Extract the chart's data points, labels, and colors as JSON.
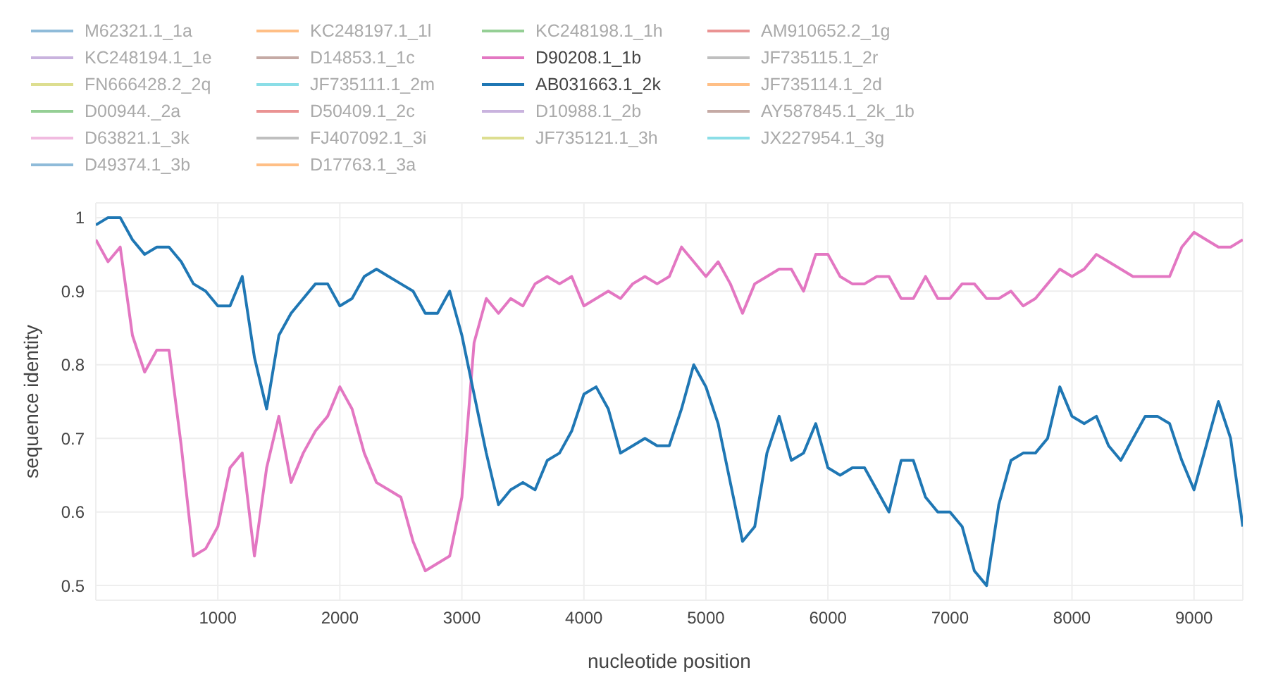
{
  "chart_data": {
    "type": "line",
    "xlabel": "nucleotide position",
    "ylabel": "sequence identity",
    "x": [
      0,
      100,
      200,
      300,
      400,
      500,
      600,
      700,
      800,
      900,
      1000,
      1100,
      1200,
      1300,
      1400,
      1500,
      1600,
      1700,
      1800,
      1900,
      2000,
      2100,
      2200,
      2300,
      2400,
      2500,
      2600,
      2700,
      2800,
      2900,
      3000,
      3100,
      3200,
      3300,
      3400,
      3500,
      3600,
      3700,
      3800,
      3900,
      4000,
      4100,
      4200,
      4300,
      4400,
      4500,
      4600,
      4700,
      4800,
      4900,
      5000,
      5100,
      5200,
      5300,
      5400,
      5500,
      5600,
      5700,
      5800,
      5900,
      6000,
      6100,
      6200,
      6300,
      6400,
      6500,
      6600,
      6700,
      6800,
      6900,
      7000,
      7100,
      7200,
      7300,
      7400,
      7500,
      7600,
      7700,
      7800,
      7900,
      8000,
      8100,
      8200,
      8300,
      8400,
      8500,
      8600,
      8700,
      8800,
      8900,
      9000,
      9100,
      9200,
      9300,
      9400
    ],
    "xlim": [
      0,
      9400
    ],
    "xticks": [
      1000,
      2000,
      3000,
      4000,
      5000,
      6000,
      7000,
      8000,
      9000
    ],
    "ylim": [
      0.48,
      1.02
    ],
    "yticks": [
      0.5,
      0.6,
      0.7,
      0.8,
      0.9,
      1
    ],
    "grid": true,
    "legend": "top",
    "line_style": "solid",
    "marker": "none",
    "series": [
      {
        "name": "M62321.1_1a",
        "color": "#1f77b4",
        "values": [
          null,
          null,
          null,
          null,
          null,
          null,
          null,
          null,
          null,
          null,
          null,
          null,
          null,
          null,
          null,
          null,
          null,
          null,
          null,
          null,
          null,
          null,
          null,
          null,
          null,
          null,
          null,
          null,
          null,
          null,
          null,
          null,
          null,
          null,
          null,
          null,
          null,
          null,
          null,
          null,
          null,
          null,
          null,
          null,
          null,
          null,
          null,
          null,
          null,
          null,
          null,
          null,
          null,
          null,
          null,
          null,
          null,
          null,
          null,
          null,
          null,
          null,
          null,
          null,
          null,
          null,
          null,
          null,
          null,
          null,
          null,
          null,
          null,
          null,
          null,
          null,
          null,
          null,
          null,
          null,
          null,
          null,
          null,
          null,
          null,
          null,
          null,
          null,
          null,
          null,
          null,
          null,
          null,
          null,
          null
        ]
      },
      {
        "name": "KC248197.1_1l",
        "color": "#ff7f0e",
        "values": [
          null,
          null,
          null,
          null,
          null,
          null,
          null,
          null,
          null,
          null,
          null,
          null,
          null,
          null,
          null,
          null,
          null,
          null,
          null,
          null,
          null,
          null,
          null,
          null,
          null,
          null,
          null,
          null,
          null,
          null,
          null,
          null,
          null,
          null,
          null,
          null,
          null,
          null,
          null,
          null,
          null,
          null,
          null,
          null,
          null,
          null,
          null,
          null,
          null,
          null,
          null,
          null,
          null,
          null,
          null,
          null,
          null,
          null,
          null,
          null,
          null,
          null,
          null,
          null,
          null,
          null,
          null,
          null,
          null,
          null,
          null,
          null,
          null,
          null,
          null,
          null,
          null,
          null,
          null,
          null,
          null,
          null,
          null,
          null,
          null,
          null,
          null,
          null,
          null,
          null,
          null,
          null,
          null,
          null,
          null
        ]
      },
      {
        "name": "KC248198.1_1h",
        "color": "#2ca02c",
        "values": [
          null,
          null,
          null,
          null,
          null,
          null,
          null,
          null,
          null,
          null,
          null,
          null,
          null,
          null,
          null,
          null,
          null,
          null,
          null,
          null,
          null,
          null,
          null,
          null,
          null,
          null,
          null,
          null,
          null,
          null,
          null,
          null,
          null,
          null,
          null,
          null,
          null,
          null,
          null,
          null,
          null,
          null,
          null,
          null,
          null,
          null,
          null,
          null,
          null,
          null,
          null,
          null,
          null,
          null,
          null,
          null,
          null,
          null,
          null,
          null,
          null,
          null,
          null,
          null,
          null,
          null,
          null,
          null,
          null,
          null,
          null,
          null,
          null,
          null,
          null,
          null,
          null,
          null,
          null,
          null,
          null,
          null,
          null,
          null,
          null,
          null,
          null,
          null,
          null,
          null,
          null,
          null,
          null,
          null,
          null
        ]
      },
      {
        "name": "AM910652.2_1g",
        "color": "#d62728",
        "values": [
          null,
          null,
          null,
          null,
          null,
          null,
          null,
          null,
          null,
          null,
          null,
          null,
          null,
          null,
          null,
          null,
          null,
          null,
          null,
          null,
          null,
          null,
          null,
          null,
          null,
          null,
          null,
          null,
          null,
          null,
          null,
          null,
          null,
          null,
          null,
          null,
          null,
          null,
          null,
          null,
          null,
          null,
          null,
          null,
          null,
          null,
          null,
          null,
          null,
          null,
          null,
          null,
          null,
          null,
          null,
          null,
          null,
          null,
          null,
          null,
          null,
          null,
          null,
          null,
          null,
          null,
          null,
          null,
          null,
          null,
          null,
          null,
          null,
          null,
          null,
          null,
          null,
          null,
          null,
          null,
          null,
          null,
          null,
          null,
          null,
          null,
          null,
          null,
          null,
          null,
          null,
          null,
          null,
          null,
          null
        ]
      },
      {
        "name": "KC248194.1_1e",
        "color": "#9467bd",
        "values": [
          null,
          null,
          null,
          null,
          null,
          null,
          null,
          null,
          null,
          null,
          null,
          null,
          null,
          null,
          null,
          null,
          null,
          null,
          null,
          null,
          null,
          null,
          null,
          null,
          null,
          null,
          null,
          null,
          null,
          null,
          null,
          null,
          null,
          null,
          null,
          null,
          null,
          null,
          null,
          null,
          null,
          null,
          null,
          null,
          null,
          null,
          null,
          null,
          null,
          null,
          null,
          null,
          null,
          null,
          null,
          null,
          null,
          null,
          null,
          null,
          null,
          null,
          null,
          null,
          null,
          null,
          null,
          null,
          null,
          null,
          null,
          null,
          null,
          null,
          null,
          null,
          null,
          null,
          null,
          null,
          null,
          null,
          null,
          null,
          null,
          null,
          null,
          null,
          null,
          null,
          null,
          null,
          null,
          null,
          null
        ]
      },
      {
        "name": "D14853.1_1c",
        "color": "#8c564b",
        "values": [
          null,
          null,
          null,
          null,
          null,
          null,
          null,
          null,
          null,
          null,
          null,
          null,
          null,
          null,
          null,
          null,
          null,
          null,
          null,
          null,
          null,
          null,
          null,
          null,
          null,
          null,
          null,
          null,
          null,
          null,
          null,
          null,
          null,
          null,
          null,
          null,
          null,
          null,
          null,
          null,
          null,
          null,
          null,
          null,
          null,
          null,
          null,
          null,
          null,
          null,
          null,
          null,
          null,
          null,
          null,
          null,
          null,
          null,
          null,
          null,
          null,
          null,
          null,
          null,
          null,
          null,
          null,
          null,
          null,
          null,
          null,
          null,
          null,
          null,
          null,
          null,
          null,
          null,
          null,
          null,
          null,
          null,
          null,
          null,
          null,
          null,
          null,
          null,
          null,
          null,
          null,
          null,
          null,
          null,
          null
        ]
      },
      {
        "name": "D90208.1_1b",
        "color": "#e377c2",
        "values": [
          0.97,
          0.94,
          0.96,
          0.84,
          0.79,
          0.82,
          0.82,
          0.69,
          0.54,
          0.55,
          0.58,
          0.66,
          0.68,
          0.54,
          0.66,
          0.73,
          0.64,
          0.68,
          0.71,
          0.73,
          0.77,
          0.74,
          0.68,
          0.64,
          0.63,
          0.62,
          0.56,
          0.52,
          0.53,
          0.54,
          0.62,
          0.83,
          0.89,
          0.87,
          0.89,
          0.88,
          0.91,
          0.92,
          0.91,
          0.92,
          0.88,
          0.89,
          0.9,
          0.89,
          0.91,
          0.92,
          0.91,
          0.92,
          0.96,
          0.94,
          0.92,
          0.94,
          0.91,
          0.87,
          0.91,
          0.92,
          0.93,
          0.93,
          0.9,
          0.95,
          0.95,
          0.92,
          0.91,
          0.91,
          0.92,
          0.92,
          0.89,
          0.89,
          0.92,
          0.89,
          0.89,
          0.91,
          0.91,
          0.89,
          0.89,
          0.9,
          0.88,
          0.89,
          0.91,
          0.93,
          0.92,
          0.93,
          0.95,
          0.94,
          0.93,
          0.92,
          0.92,
          0.92,
          0.92,
          0.96,
          0.98,
          0.97,
          0.96,
          0.96,
          0.97
        ]
      },
      {
        "name": "JF735115.1_2r",
        "color": "#7f7f7f",
        "values": [
          null,
          null,
          null,
          null,
          null,
          null,
          null,
          null,
          null,
          null,
          null,
          null,
          null,
          null,
          null,
          null,
          null,
          null,
          null,
          null,
          null,
          null,
          null,
          null,
          null,
          null,
          null,
          null,
          null,
          null,
          null,
          null,
          null,
          null,
          null,
          null,
          null,
          null,
          null,
          null,
          null,
          null,
          null,
          null,
          null,
          null,
          null,
          null,
          null,
          null,
          null,
          null,
          null,
          null,
          null,
          null,
          null,
          null,
          null,
          null,
          null,
          null,
          null,
          null,
          null,
          null,
          null,
          null,
          null,
          null,
          null,
          null,
          null,
          null,
          null,
          null,
          null,
          null,
          null,
          null,
          null,
          null,
          null,
          null,
          null,
          null,
          null,
          null,
          null,
          null,
          null,
          null,
          null,
          null,
          null
        ]
      },
      {
        "name": "FN666428.2_2q",
        "color": "#bcbd22",
        "values": [
          null,
          null,
          null,
          null,
          null,
          null,
          null,
          null,
          null,
          null,
          null,
          null,
          null,
          null,
          null,
          null,
          null,
          null,
          null,
          null,
          null,
          null,
          null,
          null,
          null,
          null,
          null,
          null,
          null,
          null,
          null,
          null,
          null,
          null,
          null,
          null,
          null,
          null,
          null,
          null,
          null,
          null,
          null,
          null,
          null,
          null,
          null,
          null,
          null,
          null,
          null,
          null,
          null,
          null,
          null,
          null,
          null,
          null,
          null,
          null,
          null,
          null,
          null,
          null,
          null,
          null,
          null,
          null,
          null,
          null,
          null,
          null,
          null,
          null,
          null,
          null,
          null,
          null,
          null,
          null,
          null,
          null,
          null,
          null,
          null,
          null,
          null,
          null,
          null,
          null,
          null,
          null,
          null,
          null,
          null
        ]
      },
      {
        "name": "JF735111.1_2m",
        "color": "#17becf",
        "values": [
          null,
          null,
          null,
          null,
          null,
          null,
          null,
          null,
          null,
          null,
          null,
          null,
          null,
          null,
          null,
          null,
          null,
          null,
          null,
          null,
          null,
          null,
          null,
          null,
          null,
          null,
          null,
          null,
          null,
          null,
          null,
          null,
          null,
          null,
          null,
          null,
          null,
          null,
          null,
          null,
          null,
          null,
          null,
          null,
          null,
          null,
          null,
          null,
          null,
          null,
          null,
          null,
          null,
          null,
          null,
          null,
          null,
          null,
          null,
          null,
          null,
          null,
          null,
          null,
          null,
          null,
          null,
          null,
          null,
          null,
          null,
          null,
          null,
          null,
          null,
          null,
          null,
          null,
          null,
          null,
          null,
          null,
          null,
          null,
          null,
          null,
          null,
          null,
          null,
          null,
          null,
          null,
          null,
          null,
          null
        ]
      },
      {
        "name": "AB031663.1_2k",
        "color": "#1f77b4",
        "values": [
          0.99,
          1.0,
          1.0,
          0.97,
          0.95,
          0.96,
          0.96,
          0.94,
          0.91,
          0.9,
          0.88,
          0.88,
          0.92,
          0.81,
          0.74,
          0.84,
          0.87,
          0.89,
          0.91,
          0.91,
          0.88,
          0.89,
          0.92,
          0.93,
          0.92,
          0.91,
          0.9,
          0.87,
          0.87,
          0.9,
          0.84,
          0.76,
          0.68,
          0.61,
          0.63,
          0.64,
          0.63,
          0.67,
          0.68,
          0.71,
          0.76,
          0.77,
          0.74,
          0.68,
          0.69,
          0.7,
          0.69,
          0.69,
          0.74,
          0.8,
          0.77,
          0.72,
          0.64,
          0.56,
          0.58,
          0.68,
          0.73,
          0.67,
          0.68,
          0.72,
          0.66,
          0.65,
          0.66,
          0.66,
          0.63,
          0.6,
          0.67,
          0.67,
          0.62,
          0.6,
          0.6,
          0.58,
          0.52,
          0.5,
          0.61,
          0.67,
          0.68,
          0.68,
          0.7,
          0.77,
          0.73,
          0.72,
          0.73,
          0.69,
          0.67,
          0.7,
          0.73,
          0.73,
          0.72,
          0.67,
          0.63,
          0.69,
          0.75,
          0.7,
          0.58
        ]
      },
      {
        "name": "JF735114.1_2d",
        "color": "#ff7f0e",
        "values": [
          null,
          null,
          null,
          null,
          null,
          null,
          null,
          null,
          null,
          null,
          null,
          null,
          null,
          null,
          null,
          null,
          null,
          null,
          null,
          null,
          null,
          null,
          null,
          null,
          null,
          null,
          null,
          null,
          null,
          null,
          null,
          null,
          null,
          null,
          null,
          null,
          null,
          null,
          null,
          null,
          null,
          null,
          null,
          null,
          null,
          null,
          null,
          null,
          null,
          null,
          null,
          null,
          null,
          null,
          null,
          null,
          null,
          null,
          null,
          null,
          null,
          null,
          null,
          null,
          null,
          null,
          null,
          null,
          null,
          null,
          null,
          null,
          null,
          null,
          null,
          null,
          null,
          null,
          null,
          null,
          null,
          null,
          null,
          null,
          null,
          null,
          null,
          null,
          null,
          null,
          null,
          null,
          null,
          null,
          null
        ]
      },
      {
        "name": "D00944._2a",
        "color": "#2ca02c",
        "values": [
          null,
          null,
          null,
          null,
          null,
          null,
          null,
          null,
          null,
          null,
          null,
          null,
          null,
          null,
          null,
          null,
          null,
          null,
          null,
          null,
          null,
          null,
          null,
          null,
          null,
          null,
          null,
          null,
          null,
          null,
          null,
          null,
          null,
          null,
          null,
          null,
          null,
          null,
          null,
          null,
          null,
          null,
          null,
          null,
          null,
          null,
          null,
          null,
          null,
          null,
          null,
          null,
          null,
          null,
          null,
          null,
          null,
          null,
          null,
          null,
          null,
          null,
          null,
          null,
          null,
          null,
          null,
          null,
          null,
          null,
          null,
          null,
          null,
          null,
          null,
          null,
          null,
          null,
          null,
          null,
          null,
          null,
          null,
          null,
          null,
          null,
          null,
          null,
          null,
          null,
          null,
          null,
          null,
          null,
          null
        ]
      },
      {
        "name": "D50409.1_2c",
        "color": "#d62728",
        "values": [
          null,
          null,
          null,
          null,
          null,
          null,
          null,
          null,
          null,
          null,
          null,
          null,
          null,
          null,
          null,
          null,
          null,
          null,
          null,
          null,
          null,
          null,
          null,
          null,
          null,
          null,
          null,
          null,
          null,
          null,
          null,
          null,
          null,
          null,
          null,
          null,
          null,
          null,
          null,
          null,
          null,
          null,
          null,
          null,
          null,
          null,
          null,
          null,
          null,
          null,
          null,
          null,
          null,
          null,
          null,
          null,
          null,
          null,
          null,
          null,
          null,
          null,
          null,
          null,
          null,
          null,
          null,
          null,
          null,
          null,
          null,
          null,
          null,
          null,
          null,
          null,
          null,
          null,
          null,
          null,
          null,
          null,
          null,
          null,
          null,
          null,
          null,
          null,
          null,
          null,
          null,
          null,
          null,
          null,
          null
        ]
      },
      {
        "name": "D10988.1_2b",
        "color": "#9467bd",
        "values": [
          null,
          null,
          null,
          null,
          null,
          null,
          null,
          null,
          null,
          null,
          null,
          null,
          null,
          null,
          null,
          null,
          null,
          null,
          null,
          null,
          null,
          null,
          null,
          null,
          null,
          null,
          null,
          null,
          null,
          null,
          null,
          null,
          null,
          null,
          null,
          null,
          null,
          null,
          null,
          null,
          null,
          null,
          null,
          null,
          null,
          null,
          null,
          null,
          null,
          null,
          null,
          null,
          null,
          null,
          null,
          null,
          null,
          null,
          null,
          null,
          null,
          null,
          null,
          null,
          null,
          null,
          null,
          null,
          null,
          null,
          null,
          null,
          null,
          null,
          null,
          null,
          null,
          null,
          null,
          null,
          null,
          null,
          null,
          null,
          null,
          null,
          null,
          null,
          null,
          null,
          null,
          null,
          null,
          null,
          null
        ]
      },
      {
        "name": "AY587845.1_2k_1b",
        "color": "#8c564b",
        "values": [
          null,
          null,
          null,
          null,
          null,
          null,
          null,
          null,
          null,
          null,
          null,
          null,
          null,
          null,
          null,
          null,
          null,
          null,
          null,
          null,
          null,
          null,
          null,
          null,
          null,
          null,
          null,
          null,
          null,
          null,
          null,
          null,
          null,
          null,
          null,
          null,
          null,
          null,
          null,
          null,
          null,
          null,
          null,
          null,
          null,
          null,
          null,
          null,
          null,
          null,
          null,
          null,
          null,
          null,
          null,
          null,
          null,
          null,
          null,
          null,
          null,
          null,
          null,
          null,
          null,
          null,
          null,
          null,
          null,
          null,
          null,
          null,
          null,
          null,
          null,
          null,
          null,
          null,
          null,
          null,
          null,
          null,
          null,
          null,
          null,
          null,
          null,
          null,
          null,
          null,
          null,
          null,
          null,
          null,
          null
        ]
      },
      {
        "name": "D63821.1_3k",
        "color": "#e377c2",
        "values": [
          null,
          null,
          null,
          null,
          null,
          null,
          null,
          null,
          null,
          null,
          null,
          null,
          null,
          null,
          null,
          null,
          null,
          null,
          null,
          null,
          null,
          null,
          null,
          null,
          null,
          null,
          null,
          null,
          null,
          null,
          null,
          null,
          null,
          null,
          null,
          null,
          null,
          null,
          null,
          null,
          null,
          null,
          null,
          null,
          null,
          null,
          null,
          null,
          null,
          null,
          null,
          null,
          null,
          null,
          null,
          null,
          null,
          null,
          null,
          null,
          null,
          null,
          null,
          null,
          null,
          null,
          null,
          null,
          null,
          null,
          null,
          null,
          null,
          null,
          null,
          null,
          null,
          null,
          null,
          null,
          null,
          null,
          null,
          null,
          null,
          null,
          null,
          null,
          null,
          null,
          null,
          null,
          null,
          null,
          null
        ]
      },
      {
        "name": "FJ407092.1_3i",
        "color": "#7f7f7f",
        "values": [
          null,
          null,
          null,
          null,
          null,
          null,
          null,
          null,
          null,
          null,
          null,
          null,
          null,
          null,
          null,
          null,
          null,
          null,
          null,
          null,
          null,
          null,
          null,
          null,
          null,
          null,
          null,
          null,
          null,
          null,
          null,
          null,
          null,
          null,
          null,
          null,
          null,
          null,
          null,
          null,
          null,
          null,
          null,
          null,
          null,
          null,
          null,
          null,
          null,
          null,
          null,
          null,
          null,
          null,
          null,
          null,
          null,
          null,
          null,
          null,
          null,
          null,
          null,
          null,
          null,
          null,
          null,
          null,
          null,
          null,
          null,
          null,
          null,
          null,
          null,
          null,
          null,
          null,
          null,
          null,
          null,
          null,
          null,
          null,
          null,
          null,
          null,
          null,
          null,
          null,
          null,
          null,
          null,
          null,
          null
        ]
      },
      {
        "name": "JF735121.1_3h",
        "color": "#bcbd22",
        "values": [
          null,
          null,
          null,
          null,
          null,
          null,
          null,
          null,
          null,
          null,
          null,
          null,
          null,
          null,
          null,
          null,
          null,
          null,
          null,
          null,
          null,
          null,
          null,
          null,
          null,
          null,
          null,
          null,
          null,
          null,
          null,
          null,
          null,
          null,
          null,
          null,
          null,
          null,
          null,
          null,
          null,
          null,
          null,
          null,
          null,
          null,
          null,
          null,
          null,
          null,
          null,
          null,
          null,
          null,
          null,
          null,
          null,
          null,
          null,
          null,
          null,
          null,
          null,
          null,
          null,
          null,
          null,
          null,
          null,
          null,
          null,
          null,
          null,
          null,
          null,
          null,
          null,
          null,
          null,
          null,
          null,
          null,
          null,
          null,
          null,
          null,
          null,
          null,
          null,
          null,
          null,
          null,
          null,
          null,
          null
        ]
      },
      {
        "name": "JX227954.1_3g",
        "color": "#17becf",
        "values": [
          null,
          null,
          null,
          null,
          null,
          null,
          null,
          null,
          null,
          null,
          null,
          null,
          null,
          null,
          null,
          null,
          null,
          null,
          null,
          null,
          null,
          null,
          null,
          null,
          null,
          null,
          null,
          null,
          null,
          null,
          null,
          null,
          null,
          null,
          null,
          null,
          null,
          null,
          null,
          null,
          null,
          null,
          null,
          null,
          null,
          null,
          null,
          null,
          null,
          null,
          null,
          null,
          null,
          null,
          null,
          null,
          null,
          null,
          null,
          null,
          null,
          null,
          null,
          null,
          null,
          null,
          null,
          null,
          null,
          null,
          null,
          null,
          null,
          null,
          null,
          null,
          null,
          null,
          null,
          null,
          null,
          null,
          null,
          null,
          null,
          null,
          null,
          null,
          null,
          null,
          null,
          null,
          null,
          null,
          null
        ]
      },
      {
        "name": "D49374.1_3b",
        "color": "#1f77b4",
        "values": [
          null,
          null,
          null,
          null,
          null,
          null,
          null,
          null,
          null,
          null,
          null,
          null,
          null,
          null,
          null,
          null,
          null,
          null,
          null,
          null,
          null,
          null,
          null,
          null,
          null,
          null,
          null,
          null,
          null,
          null,
          null,
          null,
          null,
          null,
          null,
          null,
          null,
          null,
          null,
          null,
          null,
          null,
          null,
          null,
          null,
          null,
          null,
          null,
          null,
          null,
          null,
          null,
          null,
          null,
          null,
          null,
          null,
          null,
          null,
          null,
          null,
          null,
          null,
          null,
          null,
          null,
          null,
          null,
          null,
          null,
          null,
          null,
          null,
          null,
          null,
          null,
          null,
          null,
          null,
          null,
          null,
          null,
          null,
          null,
          null,
          null,
          null,
          null,
          null,
          null,
          null,
          null,
          null,
          null,
          null
        ]
      },
      {
        "name": "D17763.1_3a",
        "color": "#ff7f0e",
        "values": [
          null,
          null,
          null,
          null,
          null,
          null,
          null,
          null,
          null,
          null,
          null,
          null,
          null,
          null,
          null,
          null,
          null,
          null,
          null,
          null,
          null,
          null,
          null,
          null,
          null,
          null,
          null,
          null,
          null,
          null,
          null,
          null,
          null,
          null,
          null,
          null,
          null,
          null,
          null,
          null,
          null,
          null,
          null,
          null,
          null,
          null,
          null,
          null,
          null,
          null,
          null,
          null,
          null,
          null,
          null,
          null,
          null,
          null,
          null,
          null,
          null,
          null,
          null,
          null,
          null,
          null,
          null,
          null,
          null,
          null,
          null,
          null,
          null,
          null,
          null,
          null,
          null,
          null,
          null,
          null,
          null,
          null,
          null,
          null,
          null,
          null,
          null,
          null,
          null,
          null,
          null,
          null,
          null,
          null,
          null
        ]
      }
    ]
  }
}
